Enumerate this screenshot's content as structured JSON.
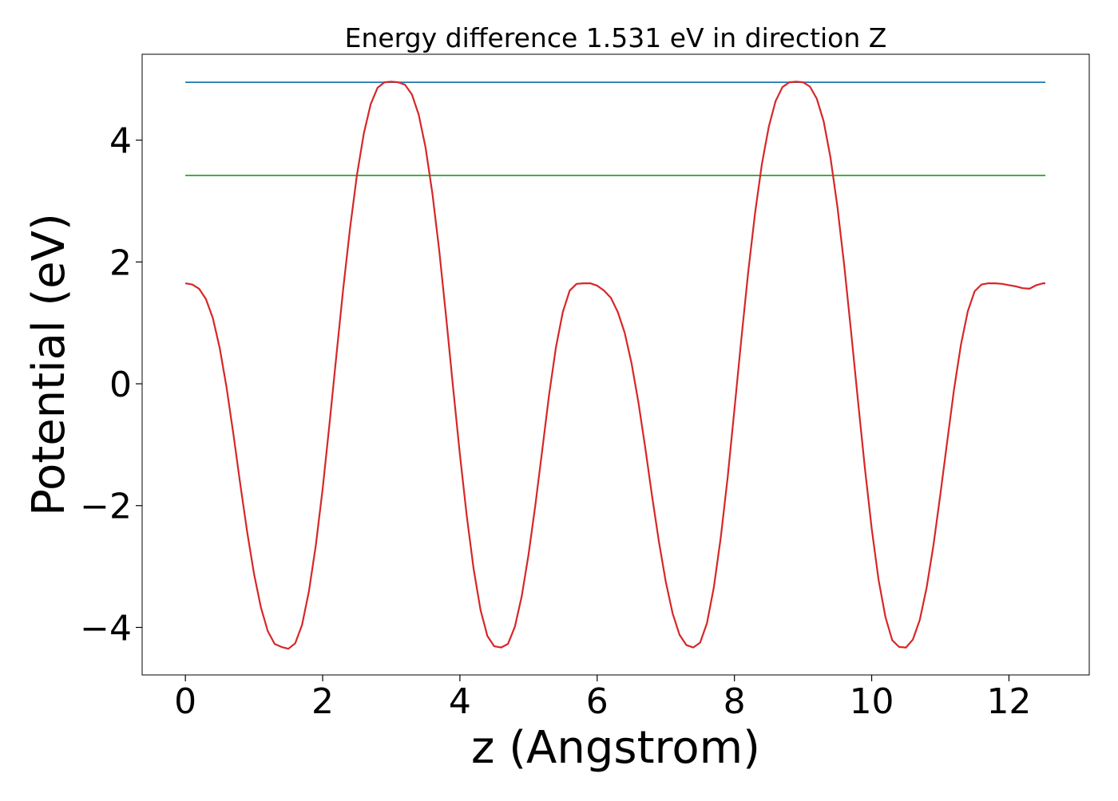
{
  "chart_data": {
    "type": "line",
    "title": "Energy difference 1.531 eV in direction Z",
    "xlabel": "z (Angstrom)",
    "ylabel": "Potential (eV)",
    "xlim": [
      -0.63,
      13.17
    ],
    "ylim": [
      -4.78,
      5.41
    ],
    "grid": false,
    "x_ticks": [
      0,
      2,
      4,
      6,
      8,
      10,
      12
    ],
    "y_ticks": [
      -4,
      -2,
      0,
      2,
      4
    ],
    "x_tick_labels": [
      "0",
      "2",
      "4",
      "6",
      "8",
      "10",
      "12"
    ],
    "y_tick_labels": [
      "−4",
      "−2",
      "0",
      "2",
      "4"
    ],
    "series": [
      {
        "color": "#1f77b4",
        "x": [
          0,
          12.53
        ],
        "y": [
          4.95,
          4.95
        ]
      },
      {
        "color": "#2ca02c",
        "x": [
          0,
          12.53
        ],
        "y": [
          3.42,
          3.42
        ]
      },
      {
        "color": "#d62728",
        "x": [
          0,
          0.1,
          0.2,
          0.3,
          0.4,
          0.5,
          0.6,
          0.7,
          0.8,
          0.9,
          1.0,
          1.1,
          1.2,
          1.3,
          1.4,
          1.5,
          1.6,
          1.7,
          1.8,
          1.9,
          2.0,
          2.1,
          2.2,
          2.3,
          2.4,
          2.5,
          2.6,
          2.7,
          2.8,
          2.9,
          3.0,
          3.1,
          3.2,
          3.3,
          3.4,
          3.5,
          3.6,
          3.7,
          3.8,
          3.9,
          4.0,
          4.1,
          4.2,
          4.3,
          4.4,
          4.5,
          4.6,
          4.7,
          4.8,
          4.9,
          5.0,
          5.1,
          5.2,
          5.3,
          5.4,
          5.5,
          5.6,
          5.7,
          5.8,
          5.9,
          6.0,
          6.1,
          6.2,
          6.3,
          6.4,
          6.5,
          6.6,
          6.7,
          6.8,
          6.9,
          7.0,
          7.1,
          7.2,
          7.3,
          7.4,
          7.5,
          7.6,
          7.7,
          7.8,
          7.9,
          8.0,
          8.1,
          8.2,
          8.3,
          8.4,
          8.5,
          8.6,
          8.7,
          8.8,
          8.9,
          9.0,
          9.1,
          9.2,
          9.3,
          9.4,
          9.5,
          9.6,
          9.7,
          9.8,
          9.9,
          10.0,
          10.1,
          10.2,
          10.3,
          10.4,
          10.5,
          10.6,
          10.7,
          10.8,
          10.9,
          11.0,
          11.1,
          11.2,
          11.3,
          11.4,
          11.5,
          11.6,
          11.7,
          11.8,
          11.9,
          12.0,
          12.1,
          12.2,
          12.3,
          12.4,
          12.5,
          12.53
        ],
        "y": [
          1.65,
          1.63,
          1.56,
          1.39,
          1.08,
          0.59,
          -0.06,
          -0.83,
          -1.65,
          -2.43,
          -3.12,
          -3.67,
          -4.06,
          -4.27,
          -4.32,
          -4.35,
          -4.26,
          -3.96,
          -3.41,
          -2.66,
          -1.73,
          -0.66,
          0.46,
          1.56,
          2.56,
          3.43,
          4.11,
          4.59,
          4.86,
          4.95,
          4.96,
          4.95,
          4.91,
          4.75,
          4.42,
          3.88,
          3.12,
          2.18,
          1.09,
          -0.05,
          -1.16,
          -2.17,
          -3.04,
          -3.71,
          -4.14,
          -4.31,
          -4.33,
          -4.27,
          -3.99,
          -3.49,
          -2.8,
          -1.99,
          -1.09,
          -0.18,
          0.6,
          1.18,
          1.53,
          1.64,
          1.65,
          1.65,
          1.61,
          1.53,
          1.41,
          1.18,
          0.84,
          0.34,
          -0.3,
          -1.05,
          -1.84,
          -2.59,
          -3.25,
          -3.77,
          -4.12,
          -4.29,
          -4.33,
          -4.25,
          -3.93,
          -3.34,
          -2.53,
          -1.55,
          -0.42,
          0.73,
          1.83,
          2.8,
          3.61,
          4.22,
          4.64,
          4.87,
          4.95,
          4.96,
          4.95,
          4.88,
          4.68,
          4.31,
          3.71,
          2.91,
          1.94,
          0.85,
          -0.28,
          -1.38,
          -2.38,
          -3.22,
          -3.83,
          -4.21,
          -4.32,
          -4.33,
          -4.2,
          -3.88,
          -3.35,
          -2.65,
          -1.82,
          -0.95,
          -0.09,
          0.64,
          1.19,
          1.52,
          1.63,
          1.65,
          1.65,
          1.64,
          1.62,
          1.6,
          1.57,
          1.56,
          1.62,
          1.65,
          1.65
        ]
      }
    ]
  }
}
